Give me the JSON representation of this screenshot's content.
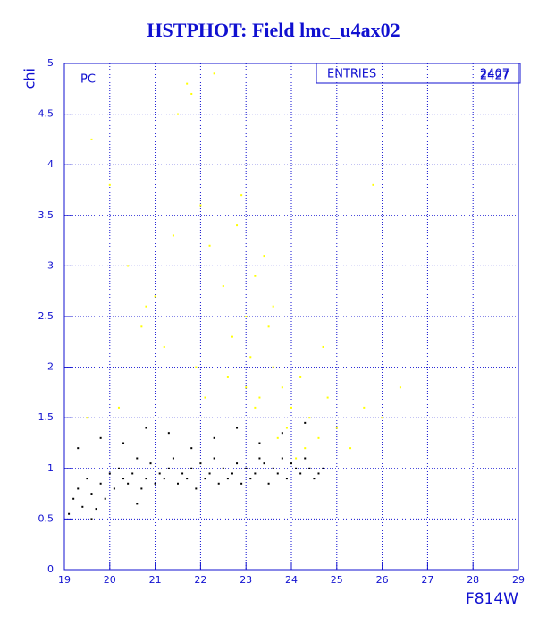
{
  "chart_data": {
    "type": "scatter",
    "title": "HSTPHOT: Field lmc_u4ax02",
    "x_label": "F814W",
    "y_label": "chi",
    "annotation": "PC",
    "stats": {
      "label": "ENTRIES",
      "values": [
        "2407",
        "2427"
      ]
    },
    "xlim": [
      19,
      29
    ],
    "ylim": [
      0,
      5
    ],
    "xticks": [
      19,
      20,
      21,
      22,
      23,
      24,
      25,
      26,
      27,
      28,
      29
    ],
    "yticks": [
      0,
      0.5,
      1,
      1.5,
      2,
      2.5,
      3,
      3.5,
      4,
      4.5,
      5
    ],
    "grid": true,
    "axis_color": "#1010d0",
    "series": [
      {
        "color": "#ffff00",
        "x": [
          19.6,
          20.0,
          20.4,
          20.8,
          21.2,
          21.5,
          21.8,
          22.0,
          22.2,
          22.5,
          22.8,
          23.0,
          23.2,
          23.4,
          23.6,
          23.8,
          24.0,
          24.2,
          24.4,
          24.6,
          24.8,
          25.0,
          25.3,
          25.6,
          26.0,
          26.4,
          21.7,
          22.3,
          22.7,
          23.1,
          23.3,
          23.5,
          23.9,
          24.3,
          21.0,
          21.9,
          22.6,
          23.2,
          23.7,
          19.5,
          20.2,
          22.1,
          23.0,
          25.8,
          24.7,
          23.6,
          22.9,
          24.1,
          21.4,
          20.7
        ],
        "values": [
          4.25,
          3.8,
          3.0,
          2.6,
          2.2,
          4.5,
          4.7,
          3.6,
          3.2,
          2.8,
          3.4,
          2.5,
          2.9,
          3.1,
          2.0,
          1.8,
          1.6,
          1.9,
          1.5,
          1.3,
          1.7,
          1.4,
          1.2,
          1.6,
          1.5,
          1.8,
          4.8,
          4.9,
          2.3,
          2.1,
          1.7,
          2.4,
          1.4,
          1.2,
          2.7,
          2.0,
          1.9,
          1.6,
          1.3,
          1.5,
          1.6,
          1.7,
          1.8,
          3.8,
          2.2,
          2.6,
          3.7,
          1.1,
          3.3,
          2.4
        ]
      },
      {
        "color": "#000000",
        "x": [
          19.1,
          19.2,
          19.3,
          19.4,
          19.5,
          19.6,
          19.7,
          19.8,
          19.9,
          20.0,
          20.1,
          20.2,
          20.3,
          20.4,
          20.5,
          20.6,
          20.7,
          20.8,
          20.9,
          21.0,
          21.1,
          21.2,
          21.3,
          21.4,
          21.5,
          21.6,
          21.7,
          21.8,
          21.9,
          22.0,
          22.1,
          22.2,
          22.3,
          22.4,
          22.5,
          22.6,
          22.7,
          22.8,
          22.9,
          23.0,
          23.1,
          23.2,
          23.3,
          23.4,
          23.5,
          23.6,
          23.7,
          23.8,
          23.9,
          24.0,
          24.1,
          24.2,
          24.3,
          24.4,
          24.5,
          24.6,
          24.7,
          19.3,
          19.8,
          20.3,
          20.8,
          21.3,
          21.8,
          22.3,
          22.8,
          23.3,
          23.8,
          24.3,
          19.6,
          20.6
        ],
        "values": [
          0.55,
          0.7,
          0.8,
          0.62,
          0.9,
          0.75,
          0.6,
          0.85,
          0.7,
          0.95,
          0.8,
          1.0,
          0.9,
          0.85,
          0.95,
          1.1,
          0.8,
          0.9,
          1.05,
          0.85,
          0.95,
          0.9,
          1.0,
          1.1,
          0.85,
          0.95,
          0.9,
          1.0,
          0.8,
          1.05,
          0.9,
          0.95,
          1.1,
          0.85,
          1.0,
          0.9,
          0.95,
          1.05,
          0.85,
          1.0,
          0.9,
          0.95,
          1.1,
          1.05,
          0.85,
          1.0,
          0.95,
          1.1,
          0.9,
          1.05,
          1.0,
          0.95,
          1.1,
          1.0,
          0.9,
          0.95,
          1.0,
          1.2,
          1.3,
          1.25,
          1.4,
          1.35,
          1.2,
          1.3,
          1.4,
          1.25,
          1.35,
          1.45,
          0.5,
          0.65
        ]
      }
    ]
  }
}
